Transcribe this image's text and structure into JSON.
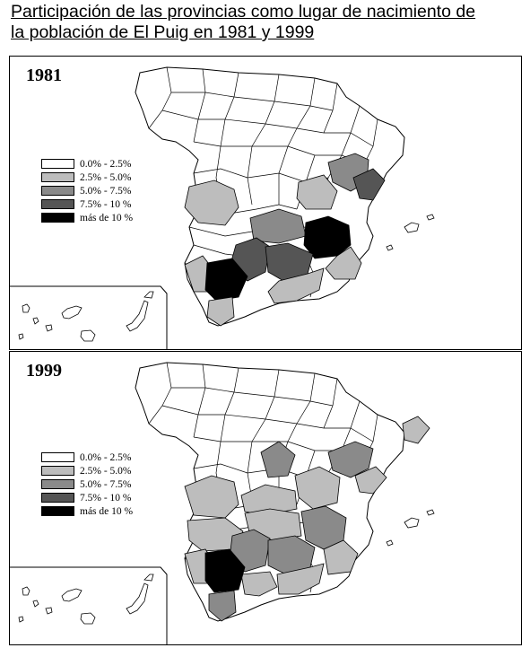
{
  "title": {
    "line1": "Participación de las provincias como lugar de nacimiento de",
    "line2": "la población de El Puig en 1981 y 1999"
  },
  "legend": [
    {
      "label": "0.0% - 2.5%",
      "color": "#ffffff"
    },
    {
      "label": "2.5% - 5.0%",
      "color": "#bdbdbd"
    },
    {
      "label": "5.0% - 7.5%",
      "color": "#8a8a8a"
    },
    {
      "label": "7.5% - 10 %",
      "color": "#555555"
    },
    {
      "label": "más de 10 %",
      "color": "#000000"
    }
  ],
  "maps": [
    {
      "year": "1981",
      "shaded_provinces": [
        {
          "name": "Badajoz",
          "class": "2.5% - 5.0%"
        },
        {
          "name": "Huelva",
          "class": "2.5% - 5.0%"
        },
        {
          "name": "Sevilla",
          "class": "más de 10 %"
        },
        {
          "name": "Cádiz",
          "class": "2.5% - 5.0%"
        },
        {
          "name": "Córdoba",
          "class": "7.5% - 10 %"
        },
        {
          "name": "Jaén",
          "class": "7.5% - 10 %"
        },
        {
          "name": "Granada",
          "class": "2.5% - 5.0%"
        },
        {
          "name": "Ciudad Real",
          "class": "5.0% - 7.5%"
        },
        {
          "name": "Cuenca",
          "class": "2.5% - 5.0%"
        },
        {
          "name": "Teruel",
          "class": "5.0% - 7.5%"
        },
        {
          "name": "Castellón",
          "class": "7.5% - 10 %"
        },
        {
          "name": "Albacete",
          "class": "más de 10 %"
        },
        {
          "name": "Murcia",
          "class": "2.5% - 5.0%"
        }
      ]
    },
    {
      "year": "1999",
      "shaded_provinces": [
        {
          "name": "Cáceres",
          "class": "2.5% - 5.0%"
        },
        {
          "name": "Badajoz",
          "class": "2.5% - 5.0%"
        },
        {
          "name": "Madrid",
          "class": "5.0% - 7.5%"
        },
        {
          "name": "Toledo",
          "class": "2.5% - 5.0%"
        },
        {
          "name": "Cuenca",
          "class": "2.5% - 5.0%"
        },
        {
          "name": "Ciudad Real",
          "class": "2.5% - 5.0%"
        },
        {
          "name": "Albacete",
          "class": "5.0% - 7.5%"
        },
        {
          "name": "Teruel",
          "class": "5.0% - 7.5%"
        },
        {
          "name": "Castellón",
          "class": "2.5% - 5.0%"
        },
        {
          "name": "Barcelona",
          "class": "2.5% - 5.0%"
        },
        {
          "name": "Huelva",
          "class": "2.5% - 5.0%"
        },
        {
          "name": "Sevilla",
          "class": "más de 10 %"
        },
        {
          "name": "Córdoba",
          "class": "5.0% - 7.5%"
        },
        {
          "name": "Jaén",
          "class": "5.0% - 7.5%"
        },
        {
          "name": "Granada",
          "class": "2.5% - 5.0%"
        },
        {
          "name": "Murcia",
          "class": "2.5% - 5.0%"
        },
        {
          "name": "Málaga",
          "class": "2.5% - 5.0%"
        },
        {
          "name": "Cádiz",
          "class": "5.0% - 7.5%"
        }
      ]
    }
  ]
}
